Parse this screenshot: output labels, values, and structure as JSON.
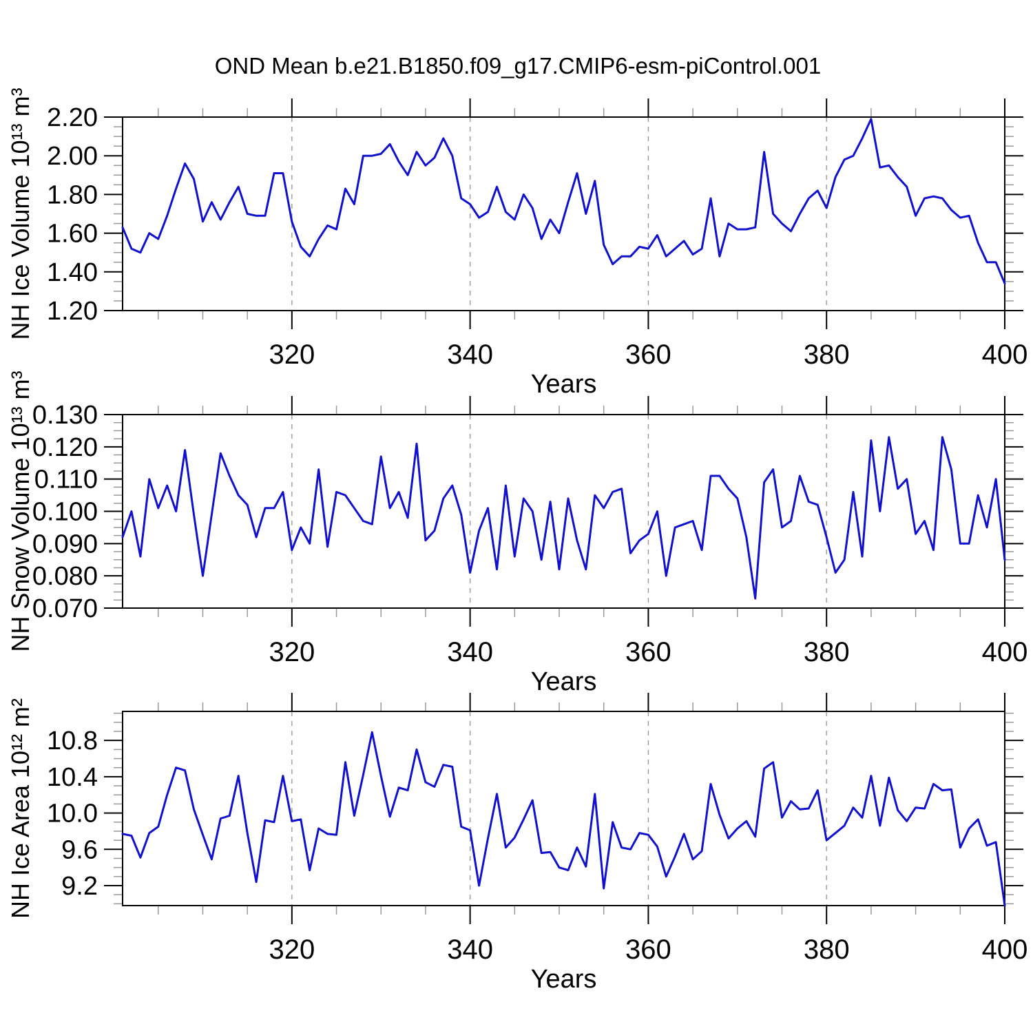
{
  "title": "OND Mean b.e21.B1850.f09_g17.CMIP6-esm-piControl.001",
  "chart_data": {
    "type": "line",
    "xlabel": "Years",
    "x_ticks": [
      320,
      340,
      360,
      380,
      400
    ],
    "x_tick_labels": [
      "320",
      "340",
      "360",
      "380",
      "400"
    ],
    "x_grid": [
      320,
      340,
      360,
      380
    ],
    "x_minor_step": 5,
    "grid_style": "dashed-vertical",
    "legend": "none",
    "colors": {
      "line": "#1010d0",
      "grid": "#999999",
      "minor_tick": "#999999",
      "axis": "#000000"
    },
    "x": [
      301,
      302,
      303,
      304,
      305,
      306,
      307,
      308,
      309,
      310,
      311,
      312,
      313,
      314,
      315,
      316,
      317,
      318,
      319,
      320,
      321,
      322,
      323,
      324,
      325,
      326,
      327,
      328,
      329,
      330,
      331,
      332,
      333,
      334,
      335,
      336,
      337,
      338,
      339,
      340,
      341,
      342,
      343,
      344,
      345,
      346,
      347,
      348,
      349,
      350,
      351,
      352,
      353,
      354,
      355,
      356,
      357,
      358,
      359,
      360,
      361,
      362,
      363,
      364,
      365,
      366,
      367,
      368,
      369,
      370,
      371,
      372,
      373,
      374,
      375,
      376,
      377,
      378,
      379,
      380,
      381,
      382,
      383,
      384,
      385,
      386,
      387,
      388,
      389,
      390,
      391,
      392,
      393,
      394,
      395,
      396,
      397,
      398,
      399,
      400
    ],
    "panels": [
      {
        "id": "nh-ice-volume",
        "ylabel": "NH Ice Volume 10¹³ m³",
        "ylim": [
          1.2,
          2.2
        ],
        "yticks": [
          1.2,
          1.4,
          1.6,
          1.8,
          2.0,
          2.2
        ],
        "ytick_labels": [
          "1.20",
          "1.40",
          "1.60",
          "1.80",
          "2.00",
          "2.20"
        ],
        "y_minor_step": 0.05,
        "values": [
          1.63,
          1.52,
          1.5,
          1.6,
          1.57,
          1.69,
          1.83,
          1.96,
          1.88,
          1.66,
          1.76,
          1.67,
          1.76,
          1.84,
          1.7,
          1.69,
          1.69,
          1.91,
          1.91,
          1.66,
          1.53,
          1.48,
          1.57,
          1.64,
          1.62,
          1.83,
          1.75,
          2.0,
          2.0,
          2.01,
          2.06,
          1.97,
          1.9,
          2.02,
          1.95,
          1.99,
          2.09,
          2.0,
          1.78,
          1.75,
          1.68,
          1.71,
          1.84,
          1.71,
          1.67,
          1.8,
          1.73,
          1.57,
          1.67,
          1.6,
          1.76,
          1.91,
          1.7,
          1.87,
          1.54,
          1.44,
          1.48,
          1.48,
          1.53,
          1.52,
          1.59,
          1.48,
          1.52,
          1.56,
          1.49,
          1.52,
          1.78,
          1.48,
          1.65,
          1.62,
          1.62,
          1.63,
          2.02,
          1.7,
          1.65,
          1.61,
          1.7,
          1.78,
          1.82,
          1.73,
          1.89,
          1.98,
          2.0,
          2.09,
          2.19,
          1.94,
          1.95,
          1.89,
          1.84,
          1.69,
          1.78,
          1.79,
          1.78,
          1.72,
          1.68,
          1.69,
          1.55,
          1.45,
          1.45,
          1.34
        ]
      },
      {
        "id": "nh-snow-volume",
        "ylabel": "NH Snow Volume 10¹³ m³",
        "ylim": [
          0.07,
          0.13
        ],
        "yticks": [
          0.07,
          0.08,
          0.09,
          0.1,
          0.11,
          0.12,
          0.13
        ],
        "ytick_labels": [
          "0.070",
          "0.080",
          "0.090",
          "0.100",
          "0.110",
          "0.120",
          "0.130"
        ],
        "y_minor_step": 0.0025,
        "values": [
          0.092,
          0.1,
          0.086,
          0.11,
          0.101,
          0.108,
          0.1,
          0.119,
          0.099,
          0.08,
          0.099,
          0.118,
          0.111,
          0.105,
          0.102,
          0.092,
          0.101,
          0.101,
          0.106,
          0.088,
          0.095,
          0.09,
          0.113,
          0.089,
          0.106,
          0.105,
          0.101,
          0.097,
          0.096,
          0.117,
          0.101,
          0.106,
          0.098,
          0.121,
          0.091,
          0.094,
          0.104,
          0.108,
          0.099,
          0.081,
          0.094,
          0.101,
          0.082,
          0.108,
          0.086,
          0.104,
          0.1,
          0.085,
          0.103,
          0.082,
          0.104,
          0.091,
          0.082,
          0.105,
          0.101,
          0.106,
          0.107,
          0.087,
          0.091,
          0.093,
          0.1,
          0.08,
          0.095,
          0.096,
          0.097,
          0.088,
          0.111,
          0.111,
          0.107,
          0.104,
          0.092,
          0.073,
          0.109,
          0.113,
          0.095,
          0.097,
          0.111,
          0.103,
          0.102,
          0.092,
          0.081,
          0.085,
          0.106,
          0.086,
          0.122,
          0.1,
          0.123,
          0.107,
          0.11,
          0.093,
          0.097,
          0.088,
          0.123,
          0.113,
          0.09,
          0.09,
          0.105,
          0.095,
          0.11,
          0.085
        ]
      },
      {
        "id": "nh-ice-area",
        "ylabel": "NH Ice Area 10¹² m²",
        "ylim": [
          8.98,
          11.12
        ],
        "yticks": [
          9.2,
          9.6,
          10.0,
          10.4,
          10.8
        ],
        "ytick_labels": [
          "9.2",
          "9.6",
          "10.0",
          "10.4",
          "10.8"
        ],
        "y_minor_step": 0.1,
        "values": [
          9.77,
          9.75,
          9.51,
          9.78,
          9.85,
          10.2,
          10.5,
          10.47,
          10.04,
          9.76,
          9.49,
          9.94,
          9.97,
          10.41,
          9.78,
          9.24,
          9.92,
          9.9,
          10.41,
          9.91,
          9.93,
          9.37,
          9.83,
          9.77,
          9.76,
          10.56,
          9.97,
          10.42,
          10.89,
          10.41,
          9.96,
          10.28,
          10.25,
          10.7,
          10.34,
          10.29,
          10.53,
          10.51,
          9.85,
          9.81,
          9.2,
          9.72,
          10.21,
          9.62,
          9.73,
          9.93,
          10.14,
          9.56,
          9.57,
          9.4,
          9.37,
          9.62,
          9.41,
          10.21,
          9.17,
          9.9,
          9.62,
          9.6,
          9.78,
          9.76,
          9.63,
          9.3,
          9.52,
          9.77,
          9.49,
          9.58,
          10.32,
          9.98,
          9.72,
          9.83,
          9.91,
          9.74,
          10.49,
          10.56,
          9.95,
          10.13,
          10.04,
          10.05,
          10.25,
          9.7,
          9.78,
          9.86,
          10.06,
          9.95,
          10.41,
          9.86,
          10.39,
          10.03,
          9.91,
          10.06,
          10.05,
          10.32,
          10.25,
          10.26,
          9.62,
          9.83,
          9.93,
          9.64,
          9.68,
          8.98
        ]
      }
    ]
  }
}
